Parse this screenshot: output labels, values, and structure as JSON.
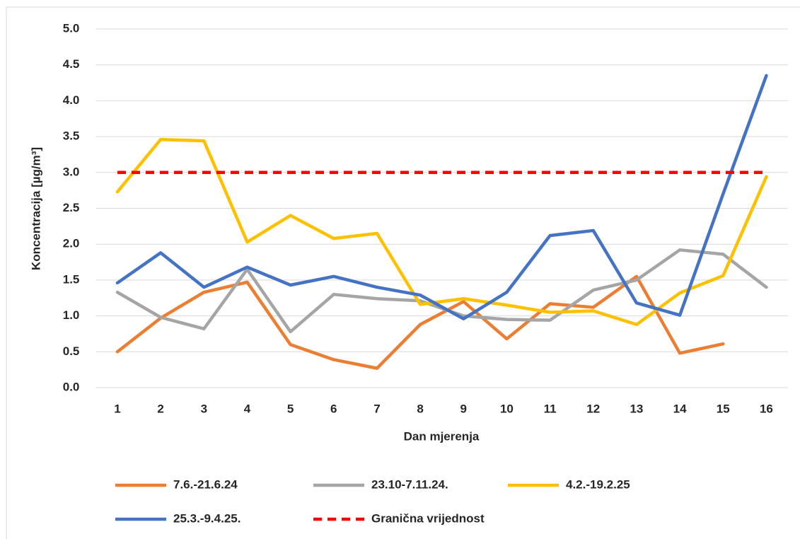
{
  "chart_data": {
    "type": "line",
    "y_label": "Koncentracija [µg/m³]",
    "x_label": "Dan mjerenja",
    "categories": [
      "1",
      "2",
      "3",
      "4",
      "5",
      "6",
      "7",
      "8",
      "9",
      "10",
      "11",
      "12",
      "13",
      "14",
      "15",
      "16"
    ],
    "series": [
      {
        "name": "7.6.-21.6.24",
        "color": "#ed7d31",
        "values": [
          0.5,
          0.97,
          1.33,
          1.47,
          0.6,
          0.39,
          0.27,
          0.88,
          1.2,
          0.68,
          1.17,
          1.12,
          1.55,
          0.48,
          0.61,
          null
        ]
      },
      {
        "name": "23.10-7.11.24.",
        "color": "#a5a5a5",
        "values": [
          1.33,
          0.98,
          0.82,
          1.65,
          0.78,
          1.3,
          1.24,
          1.21,
          1.0,
          0.95,
          0.94,
          1.36,
          1.5,
          1.92,
          1.86,
          1.4
        ]
      },
      {
        "name": "4.2.-19.2.25",
        "color": "#ffc000",
        "values": [
          2.73,
          3.46,
          3.44,
          2.03,
          2.4,
          2.08,
          2.15,
          1.16,
          1.24,
          1.15,
          1.05,
          1.07,
          0.88,
          1.32,
          1.56,
          2.94
        ]
      },
      {
        "name": "25.3.-9.4.25.",
        "color": "#4472c4",
        "values": [
          1.46,
          1.88,
          1.4,
          1.68,
          1.43,
          1.55,
          1.4,
          1.29,
          0.96,
          1.33,
          2.12,
          2.19,
          1.18,
          1.01,
          2.7,
          4.35
        ]
      },
      {
        "name": "Granična vrijednost",
        "color": "#ff0000",
        "dashed": true,
        "values": [
          3,
          3,
          3,
          3,
          3,
          3,
          3,
          3,
          3,
          3,
          3,
          3,
          3,
          3,
          3,
          3
        ]
      }
    ],
    "ylim": [
      0,
      5
    ],
    "yticks": [
      {
        "value": 0,
        "label": "0.0"
      },
      {
        "value": 0.5,
        "label": "0.5"
      },
      {
        "value": 1,
        "label": "1.0"
      },
      {
        "value": 1.5,
        "label": "1.5"
      },
      {
        "value": 2,
        "label": "2.0"
      },
      {
        "value": 2.5,
        "label": "2.5"
      },
      {
        "value": 3,
        "label": "3.0"
      },
      {
        "value": 3.5,
        "label": "3.5"
      },
      {
        "value": 4,
        "label": "4.0"
      },
      {
        "value": 4.5,
        "label": "4.5"
      },
      {
        "value": 5,
        "label": "5.0"
      }
    ],
    "grid": true,
    "legend": "bottom"
  }
}
